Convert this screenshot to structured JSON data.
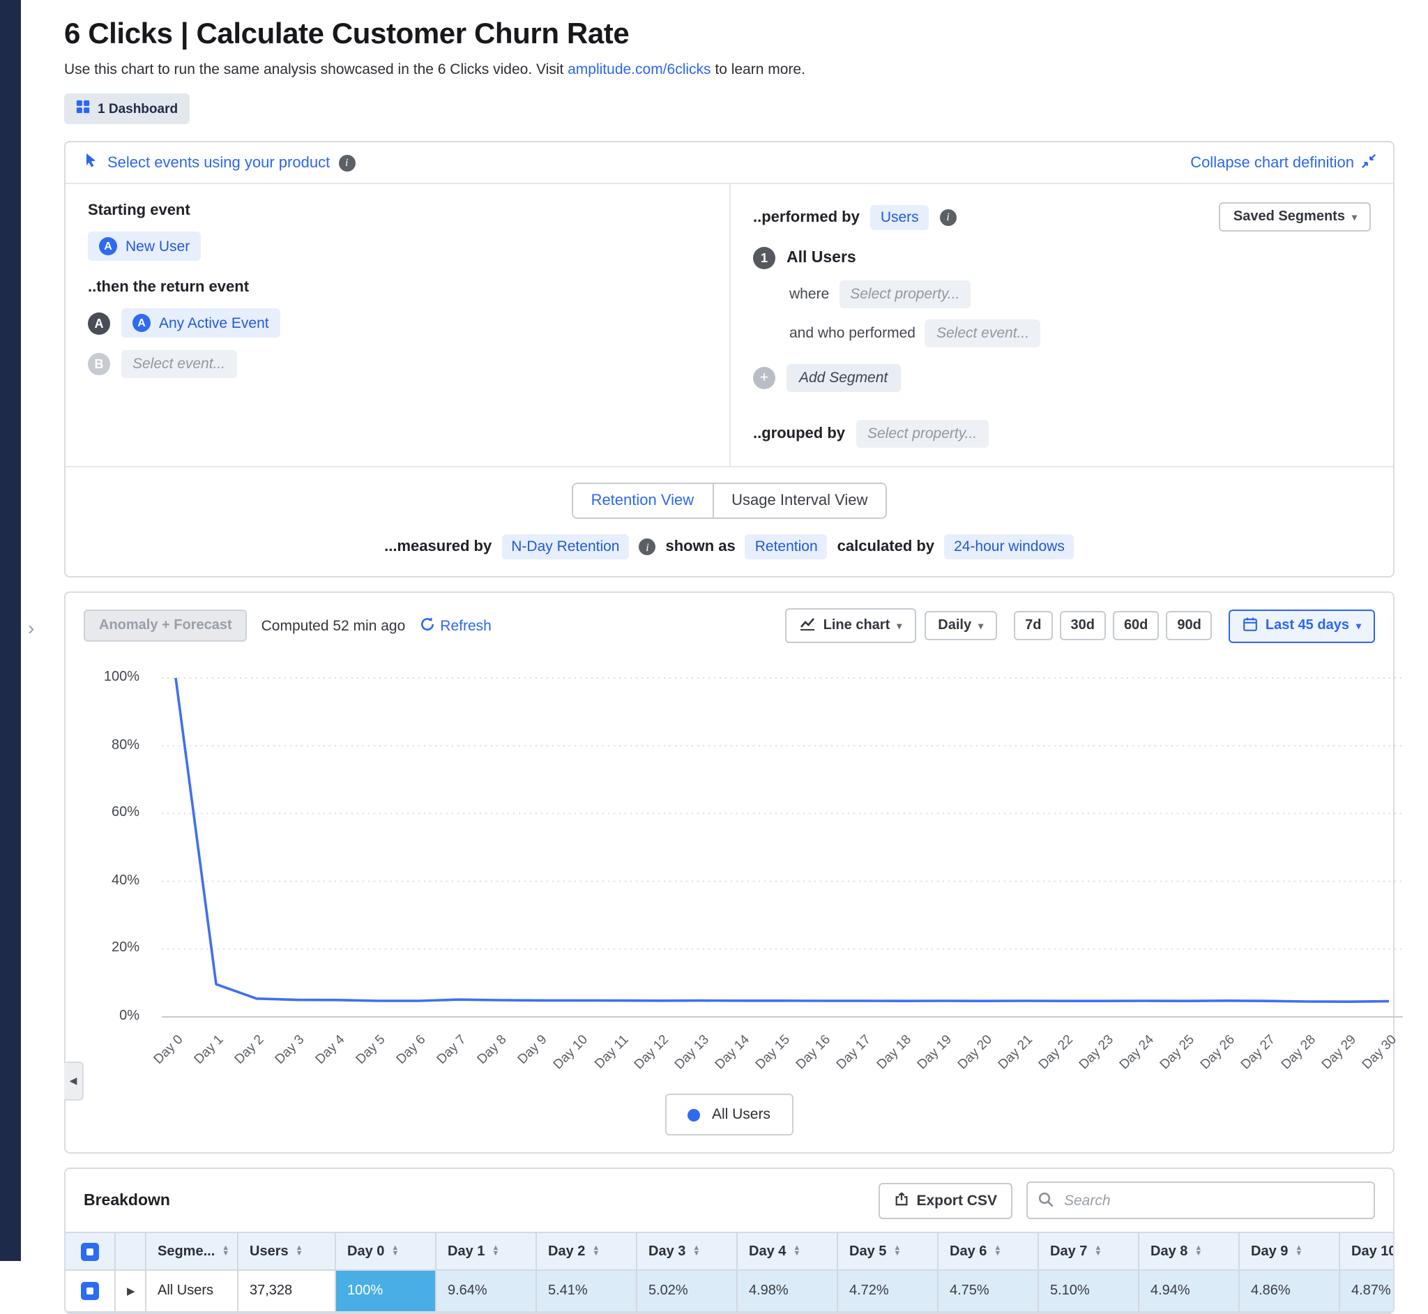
{
  "page": {
    "title": "6 Clicks | Calculate Customer Churn Rate",
    "subtitle_prefix": "Use this chart to run the same analysis showcased in the 6 Clicks video. Visit ",
    "subtitle_link": "amplitude.com/6clicks",
    "subtitle_suffix": " to learn more.",
    "dashboard_badge": "1 Dashboard"
  },
  "definition": {
    "select_events_label": "Select events using your product",
    "collapse_label": "Collapse chart definition",
    "starting_event_label": "Starting event",
    "starting_event": "New User",
    "return_event_label": "..then the return event",
    "event_a_badge": "A",
    "event_a": "Any Active Event",
    "event_b_badge": "B",
    "event_b_placeholder": "Select event...",
    "performed_by_label": "..performed by",
    "performed_by_value": "Users",
    "saved_segments_label": "Saved Segments",
    "segment_number": "1",
    "segment_name": "All Users",
    "where_label": "where",
    "where_placeholder": "Select property...",
    "who_performed_label": "and who performed",
    "who_performed_placeholder": "Select event...",
    "add_segment_label": "Add Segment",
    "grouped_by_label": "..grouped by",
    "grouped_by_placeholder": "Select property...",
    "retention_tab": "Retention View",
    "usage_tab": "Usage Interval View",
    "measured_by_label": "...measured by",
    "measured_by_value": "N-Day Retention",
    "shown_as_label": "shown as",
    "shown_as_value": "Retention",
    "calculated_by_label": "calculated by",
    "calculated_by_value": "24-hour windows"
  },
  "toolbar": {
    "anomaly_forecast_label": "Anomaly + Forecast",
    "computed_text": "Computed 52 min ago",
    "refresh_label": "Refresh",
    "chart_type_label": "Line chart",
    "granularity_label": "Daily",
    "ranges": [
      "7d",
      "30d",
      "60d",
      "90d"
    ],
    "date_range_label": "Last 45 days"
  },
  "chart_data": {
    "type": "line",
    "title": "",
    "xlabel": "",
    "ylabel": "",
    "categories": [
      "Day 0",
      "Day 1",
      "Day 2",
      "Day 3",
      "Day 4",
      "Day 5",
      "Day 6",
      "Day 7",
      "Day 8",
      "Day 9",
      "Day 10",
      "Day 11",
      "Day 12",
      "Day 13",
      "Day 14",
      "Day 15",
      "Day 16",
      "Day 17",
      "Day 18",
      "Day 19",
      "Day 20",
      "Day 21",
      "Day 22",
      "Day 23",
      "Day 24",
      "Day 25",
      "Day 26",
      "Day 27",
      "Day 28",
      "Day 29",
      "Day 30"
    ],
    "series": [
      {
        "name": "All Users",
        "values": [
          100,
          9.64,
          5.41,
          5.02,
          4.98,
          4.72,
          4.75,
          5.1,
          4.94,
          4.86,
          4.87,
          4.82,
          4.78,
          4.8,
          4.76,
          4.78,
          4.72,
          4.75,
          4.7,
          4.73,
          4.7,
          4.72,
          4.68,
          4.7,
          4.73,
          4.68,
          4.76,
          4.7,
          4.52,
          4.48,
          4.6
        ]
      }
    ],
    "ylim": [
      0,
      100
    ],
    "y_ticks": [
      100,
      80,
      60,
      40,
      20,
      0
    ],
    "y_tick_suffix": "%",
    "grid": "dotted-horizontal",
    "legend_position": "bottom-center",
    "line_color": "#3f6ff2"
  },
  "breakdown": {
    "title": "Breakdown",
    "export_label": "Export CSV",
    "search_placeholder": "Search",
    "segment_column": "Segme...",
    "users_column": "Users",
    "day_columns": [
      "Day 0",
      "Day 1",
      "Day 2",
      "Day 3",
      "Day 4",
      "Day 5",
      "Day 6",
      "Day 7",
      "Day 8",
      "Day 9",
      "Day 10"
    ],
    "row": {
      "segment": "All Users",
      "users": "37,328",
      "day_values": [
        "100%",
        "9.64%",
        "5.41%",
        "5.02%",
        "4.98%",
        "4.72%",
        "4.75%",
        "5.10%",
        "4.94%",
        "4.86%",
        "4.87%"
      ]
    }
  },
  "glyphs": {
    "chevron_down": "▾",
    "sort_up": "▲",
    "sort_down": "▼",
    "expander": "▶",
    "collapse_handle": "◀",
    "expand_chevron": "›",
    "info": "i",
    "plus": "+",
    "event_letter": "A"
  },
  "colors": {
    "accent": "#2c66f0",
    "line": "#3f6ff2",
    "highlight_cell": "#49aee5",
    "nav_strip": "#1e2a4a"
  }
}
